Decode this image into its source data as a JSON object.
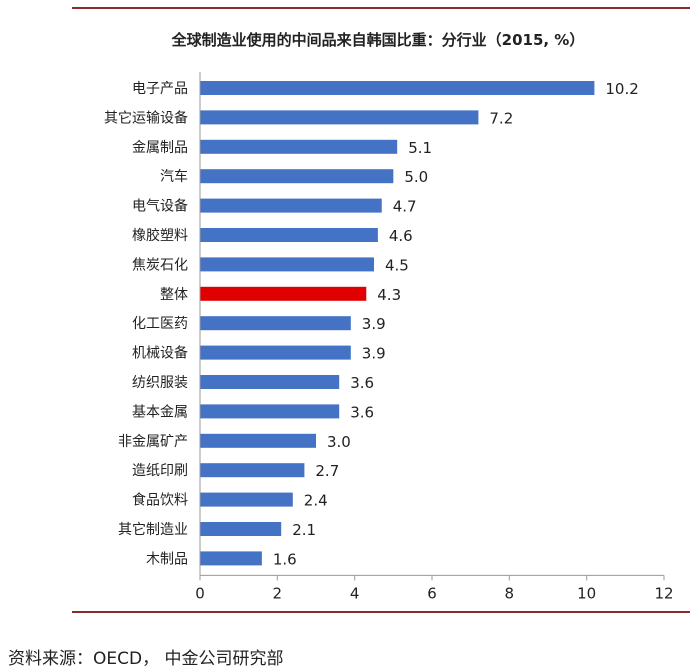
{
  "colors": {
    "bar": "#4472C4",
    "highlight": "#E00000",
    "rule": "#8B2C2C",
    "axis": "#999999",
    "text": "#222222"
  },
  "chart_data": {
    "type": "bar",
    "orientation": "horizontal",
    "title": "全球制造业使用的中间品来自韩国比重：分行业（2015, %）",
    "xlabel": "",
    "ylabel": "",
    "xlim": [
      0,
      12
    ],
    "xticks": [
      0,
      2,
      4,
      6,
      8,
      10,
      12
    ],
    "grid": false,
    "legend": "none",
    "categories": [
      "电子产品",
      "其它运输设备",
      "金属制品",
      "汽车",
      "电气设备",
      "橡胶塑料",
      "焦炭石化",
      "整体",
      "化工医药",
      "机械设备",
      "纺织服装",
      "基本金属",
      "非金属矿产",
      "造纸印刷",
      "食品饮料",
      "其它制造业",
      "木制品"
    ],
    "values": [
      10.2,
      7.2,
      5.1,
      5.0,
      4.7,
      4.6,
      4.5,
      4.3,
      3.9,
      3.9,
      3.6,
      3.6,
      3.0,
      2.7,
      2.4,
      2.1,
      1.6
    ],
    "value_labels": [
      "10.2",
      "7.2",
      "5.1",
      "5.0",
      "4.7",
      "4.6",
      "4.5",
      "4.3",
      "3.9",
      "3.9",
      "3.6",
      "3.6",
      "3.0",
      "2.7",
      "2.4",
      "2.1",
      "1.6"
    ],
    "highlight_category": "整体"
  },
  "source": "资料来源：OECD， 中金公司研究部"
}
